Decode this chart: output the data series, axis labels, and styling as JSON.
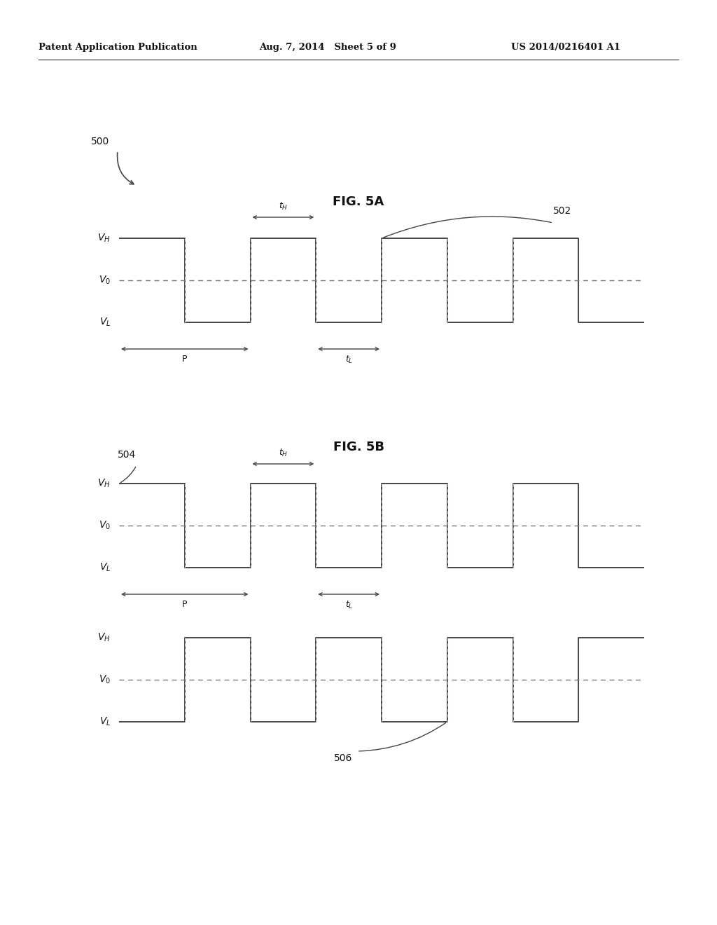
{
  "bg_color": "#ffffff",
  "text_color": "#111111",
  "header_left": "Patent Application Publication",
  "header_center": "Aug. 7, 2014   Sheet 5 of 9",
  "header_right": "US 2014/0216401 A1",
  "fig5a_title": "FIG. 5A",
  "fig5b_title": "FIG. 5B",
  "label_500": "500",
  "label_502": "502",
  "label_504": "504",
  "label_506": "506",
  "VH": 2.0,
  "V0": 1.0,
  "VL": 0.0
}
